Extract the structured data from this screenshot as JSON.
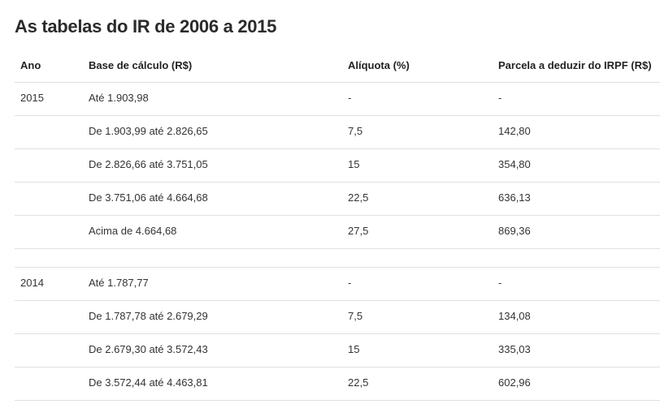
{
  "header": {
    "title": "As tabelas do IR de 2006 a 2015"
  },
  "table": {
    "columns": [
      "Ano",
      "Base de cálculo (R$)",
      "Alíquota (%)",
      "Parcela a deduzir do IRPF (R$)"
    ],
    "groups": [
      {
        "year": "2015",
        "rows": [
          [
            "Até 1.903,98",
            "-",
            "-"
          ],
          [
            "De 1.903,99 até 2.826,65",
            "7,5",
            "142,80"
          ],
          [
            "De 2.826,66 até 3.751,05",
            "15",
            "354,80"
          ],
          [
            "De 3.751,06 até 4.664,68",
            "22,5",
            "636,13"
          ],
          [
            "Acima de 4.664,68",
            "27,5",
            "869,36"
          ]
        ]
      },
      {
        "year": "2014",
        "rows": [
          [
            "Até 1.787,77",
            "-",
            "-"
          ],
          [
            "De 1.787,78 até 2.679,29",
            "7,5",
            "134,08"
          ],
          [
            "De 2.679,30 até 3.572,43",
            "15",
            "335,03"
          ],
          [
            "De 3.572,44 até 4.463,81",
            "22,5",
            "602,96"
          ]
        ]
      }
    ]
  }
}
